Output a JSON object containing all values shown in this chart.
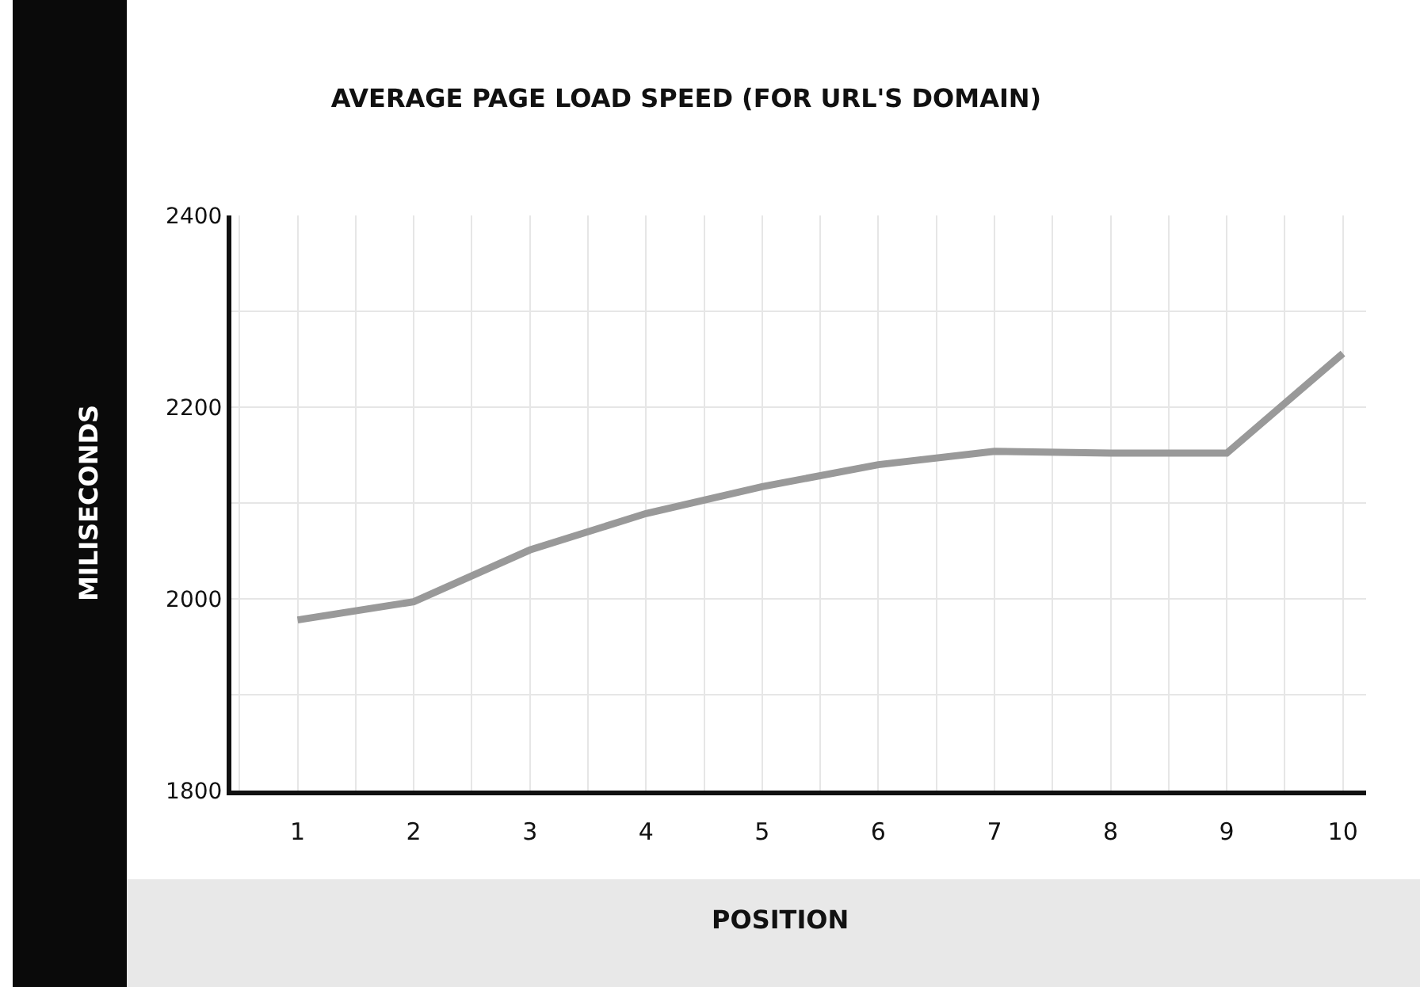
{
  "chart_data": {
    "type": "line",
    "title": "AVERAGE PAGE LOAD SPEED (FOR URL'S DOMAIN)",
    "xlabel": "POSITION",
    "ylabel": "MILISECONDS",
    "x": [
      1,
      2,
      3,
      4,
      5,
      6,
      7,
      8,
      9,
      10
    ],
    "series": [
      {
        "color": "#999999",
        "values": [
          1978,
          1997,
          2051,
          2089,
          2117,
          2140,
          2154,
          2152,
          2152,
          2256
        ]
      }
    ],
    "xlim": [
      0.43,
      10.2
    ],
    "xticks": [
      1,
      2,
      3,
      4,
      5,
      6,
      7,
      8,
      9,
      10
    ],
    "ylim": [
      1800,
      2400
    ],
    "yticks": [
      1800,
      2000,
      2200,
      2400
    ],
    "grid": true,
    "marker": "none",
    "line_style": "solid"
  }
}
